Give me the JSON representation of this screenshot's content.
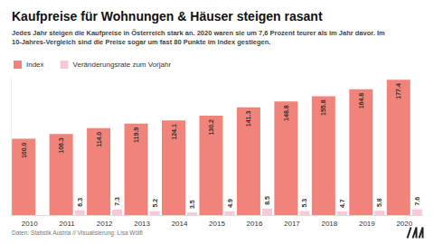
{
  "chart_data": {
    "type": "bar",
    "title": "Kaufpreise für Wohnungen & Häuser steigen rasant",
    "subtitle": "Jedes Jahr steigen die Kaufpreise in Österreich stark an. 2020 waren sie um 7,6 Prozent teurer als im Jahr davor. Im 10-Jahres-Vergleich sind die Preise sogar um fast 80 Punkte im Index gestiegen.",
    "source": "Daten: Statistik Austria // Visualisierung: Lisa Wölfl",
    "categories": [
      "2010",
      "2011",
      "2012",
      "2013",
      "2014",
      "2015",
      "2016",
      "2017",
      "2018",
      "2019",
      "2020"
    ],
    "series": [
      {
        "name": "Index",
        "color": "#f0837a",
        "values": [
          100.0,
          106.3,
          114.0,
          119.9,
          124.1,
          130.2,
          141.3,
          148.8,
          155.8,
          164.8,
          177.4
        ],
        "value_labels": [
          "100.0",
          "106.3",
          "114.0",
          "119.9",
          "124.1",
          "130.2",
          "141.3",
          "148.8",
          "155.8",
          "164.8",
          "177.4"
        ]
      },
      {
        "name": "Veränderungsrate zum Vorjahr",
        "color": "#f6c9d8",
        "values": [
          null,
          6.3,
          7.3,
          5.2,
          3.5,
          4.9,
          8.5,
          5.3,
          4.7,
          5.8,
          7.6
        ]
      }
    ],
    "ylim": [
      0,
      180
    ],
    "tick_labels": "x",
    "grid": false,
    "legend": "top-left",
    "data_labels": true
  }
}
